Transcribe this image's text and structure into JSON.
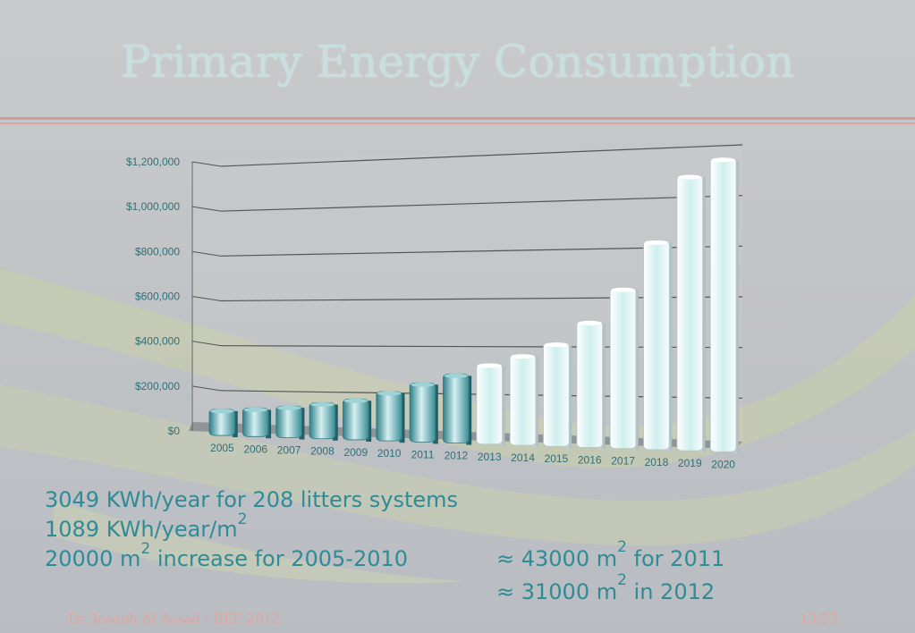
{
  "slide": {
    "title": "Primary Energy Consumption",
    "footer_left": "Dr. Joseph Al Assad - BEF 2012",
    "footer_right": "13/35"
  },
  "notes": {
    "line1": "3049 KWh/year for 208 litters systems",
    "line2_text": "1089 KWh/year/m",
    "line2_sup": "2",
    "line3_text": "20000 m",
    "line3_sup": "2",
    "line3_rest": " increase for 2005-2010",
    "line4_text": "≈ 43000 m",
    "line4_sup": "2",
    "line4_rest": " for 2011",
    "line5_text": "≈ 31000 m",
    "line5_sup": "2",
    "line5_rest": " in 2012"
  },
  "colors": {
    "accent": "#2f8b95",
    "bar_dark": "#3f9aa2",
    "bar_light": "#e8f6f6",
    "title": "#c8dfe0"
  },
  "chart_data": {
    "type": "bar",
    "style": "3d-cylinder",
    "categories": [
      "2005",
      "2006",
      "2007",
      "2008",
      "2009",
      "2010",
      "2011",
      "2012",
      "2013",
      "2014",
      "2015",
      "2016",
      "2017",
      "2018",
      "2019",
      "2020"
    ],
    "values": [
      100000,
      110000,
      122000,
      140000,
      160000,
      195000,
      235000,
      275000,
      320000,
      360000,
      410000,
      500000,
      635000,
      825000,
      1085000,
      1150000
    ],
    "series_style": [
      "dark",
      "dark",
      "dark",
      "dark",
      "dark",
      "dark",
      "dark",
      "dark",
      "light",
      "light",
      "light",
      "light",
      "light",
      "light",
      "light",
      "light"
    ],
    "ylim": [
      0,
      1200000
    ],
    "yticks": [
      "$0",
      "$200,000",
      "$400,000",
      "$600,000",
      "$800,000",
      "$1,000,000",
      "$1,200,000"
    ],
    "grid": true,
    "title": "",
    "xlabel": "",
    "ylabel": ""
  }
}
